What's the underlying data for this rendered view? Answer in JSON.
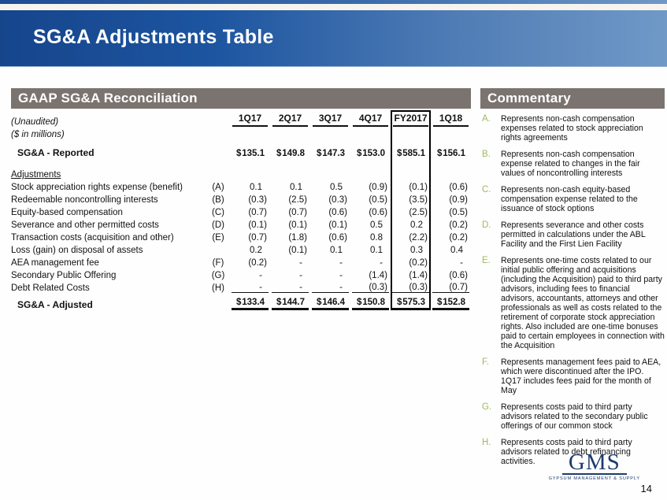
{
  "slide": {
    "title": "SG&A Adjustments Table",
    "page_number": "14"
  },
  "colors": {
    "title_bar_gradient_left": "#16458c",
    "title_bar_gradient_right": "#7099c7",
    "section_bar_gray": "#7a7370",
    "commentary_letter_green": "#9cba59",
    "logo_navy": "#1e3a6e"
  },
  "table": {
    "section_title": "GAAP SG&A Reconciliation",
    "note_line1": "(Unaudited)",
    "note_line2": "($ in millions)",
    "columns": [
      "1Q17",
      "2Q17",
      "3Q17",
      "4Q17",
      "FY2017",
      "1Q18"
    ],
    "highlight_column": "FY2017",
    "reported_row": {
      "label": "SG&A - Reported",
      "values": [
        "$ 135.1",
        "$ 149.8",
        "$ 147.3",
        "$ 153.0",
        "$ 585.1",
        "$ 156.1"
      ]
    },
    "adjustments_heading": "Adjustments",
    "adjustment_rows": [
      {
        "label": "Stock appreciation rights expense (benefit)",
        "letter": "(A)",
        "values": [
          "0.1",
          "0.1",
          "0.5",
          "(0.9)",
          "(0.1)",
          "(0.6)"
        ]
      },
      {
        "label": "Redeemable noncontrolling interests",
        "letter": "(B)",
        "values": [
          "(0.3)",
          "(2.5)",
          "(0.3)",
          "(0.5)",
          "(3.5)",
          "(0.9)"
        ]
      },
      {
        "label": "Equity-based compensation",
        "letter": "(C)",
        "values": [
          "(0.7)",
          "(0.7)",
          "(0.6)",
          "(0.6)",
          "(2.5)",
          "(0.5)"
        ]
      },
      {
        "label": "Severance and other permitted costs",
        "letter": "(D)",
        "values": [
          "(0.1)",
          "(0.1)",
          "(0.1)",
          "0.5",
          "0.2",
          "(0.2)"
        ]
      },
      {
        "label": "Transaction costs (acquisition and other)",
        "letter": "(E)",
        "values": [
          "(0.7)",
          "(1.8)",
          "(0.6)",
          "0.8",
          "(2.2)",
          "(0.2)"
        ]
      },
      {
        "label": "Loss (gain) on disposal of assets",
        "letter": "",
        "values": [
          "0.2",
          "(0.1)",
          "0.1",
          "0.1",
          "0.3",
          "0.4"
        ]
      },
      {
        "label": "AEA management fee",
        "letter": "(F)",
        "values": [
          "(0.2)",
          "-",
          "-",
          "-",
          "(0.2)",
          "-"
        ]
      },
      {
        "label": "Secondary Public Offering",
        "letter": "(G)",
        "values": [
          "-",
          "-",
          "-",
          "(1.4)",
          "(1.4)",
          "(0.6)"
        ]
      },
      {
        "label": "Debt Related Costs",
        "letter": "(H)",
        "values": [
          "-",
          "-",
          "-",
          "(0.3)",
          "(0.3)",
          "(0.7)"
        ]
      }
    ],
    "adjusted_row": {
      "label": "SG&A - Adjusted",
      "values": [
        "$ 133.4",
        "$ 144.7",
        "$ 146.4",
        "$ 150.8",
        "$ 575.3",
        "$ 152.8"
      ]
    }
  },
  "commentary": {
    "section_title": "Commentary",
    "items": [
      {
        "letter": "A.",
        "text": "Represents non-cash compensation expenses related to stock appreciation rights agreements"
      },
      {
        "letter": "B.",
        "text": "Represents non-cash compensation expense related to changes in the fair values of noncontrolling interests"
      },
      {
        "letter": "C.",
        "text": "Represents non-cash equity-based compensation expense related to the issuance of stock options"
      },
      {
        "letter": "D.",
        "text": "Represents severance and other costs permitted in calculations under the ABL Facility and the First Lien Facility"
      },
      {
        "letter": "E.",
        "text": "Represents one-time costs related to our initial public offering and acquisitions (including the Acquisition) paid to third party advisors, including fees to financial advisors, accountants, attorneys and other professionals as well as costs related to the retirement of corporate stock appreciation rights. Also included are one-time bonuses paid to certain employees in connection with the Acquisition"
      },
      {
        "letter": "F.",
        "text": "Represents management fees paid to AEA, which were discontinued after the IPO. 1Q17 includes fees paid for the month of May"
      },
      {
        "letter": "G.",
        "text": "Represents costs paid to third party advisors related to the secondary public offerings of our common stock"
      },
      {
        "letter": "H.",
        "text": "Represents costs paid to third party advisors related to debt refinancing activities."
      }
    ]
  },
  "logo": {
    "text": "GMS",
    "subtext": "GYPSUM MANAGEMENT & SUPPLY"
  }
}
